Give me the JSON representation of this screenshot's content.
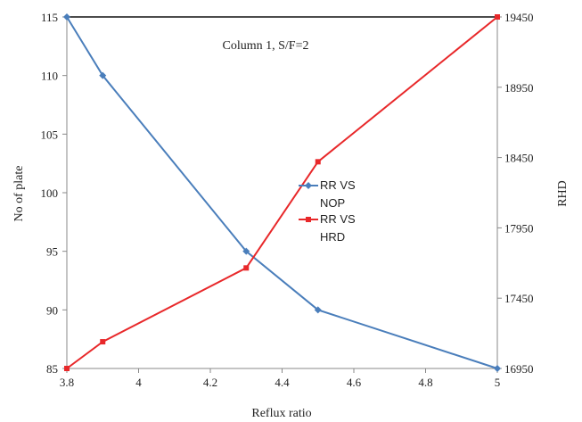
{
  "chart_data": {
    "type": "line",
    "annotation": "Column 1, S/F=2",
    "xlabel": "Reflux ratio",
    "ylabel_left": "No of plate",
    "ylabel_right": "RHD",
    "xlim": [
      3.8,
      5
    ],
    "ylim_left": [
      85,
      115
    ],
    "ylim_right": [
      16950,
      19450
    ],
    "grid": false,
    "legend_position": "center-right",
    "x_ticks": [
      "3.8",
      "4",
      "4.2",
      "4.4",
      "4.6",
      "4.8",
      "5"
    ],
    "y_left_ticks": [
      "85",
      "90",
      "95",
      "100",
      "105",
      "110",
      "115"
    ],
    "y_right_ticks": [
      "16950",
      "17450",
      "17950",
      "18450",
      "18950",
      "19450"
    ],
    "series": [
      {
        "name_line1": "RR VS",
        "name_line2": "NOP",
        "axis": "left",
        "color": "#4a7ebb",
        "marker": "diamond",
        "x": [
          3.8,
          3.9,
          4.3,
          4.5,
          5.0
        ],
        "y": [
          115,
          110,
          95,
          90,
          85
        ]
      },
      {
        "name_line1": "RR VS",
        "name_line2": "HRD",
        "axis": "right",
        "color": "#e8282a",
        "marker": "square",
        "x": [
          3.8,
          3.9,
          4.3,
          4.5,
          5.0
        ],
        "y": [
          16950,
          17140,
          17665,
          18420,
          19450
        ]
      }
    ]
  }
}
